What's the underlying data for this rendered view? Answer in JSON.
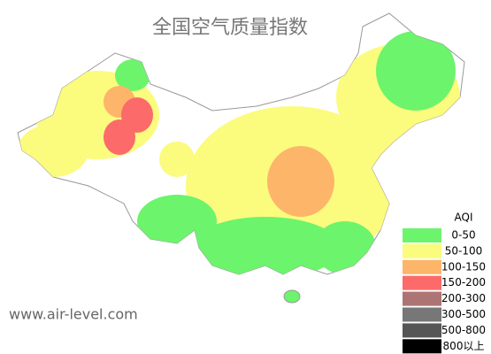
{
  "title": "全国空气质量指数",
  "legend": {
    "title": "AQI",
    "items": [
      {
        "label": "0-50",
        "color": "#6cf46c"
      },
      {
        "label": "50-100",
        "color": "#fbfb7e"
      },
      {
        "label": "100-150",
        "color": "#fdb56a"
      },
      {
        "label": "150-200",
        "color": "#fc6a6a"
      },
      {
        "label": "200-300",
        "color": "#ad7474"
      },
      {
        "label": "300-500",
        "color": "#777777"
      },
      {
        "label": "500-800",
        "color": "#555555"
      },
      {
        "label": "800以上",
        "color": "#000000"
      }
    ]
  },
  "watermark": "www.air-level.com"
}
